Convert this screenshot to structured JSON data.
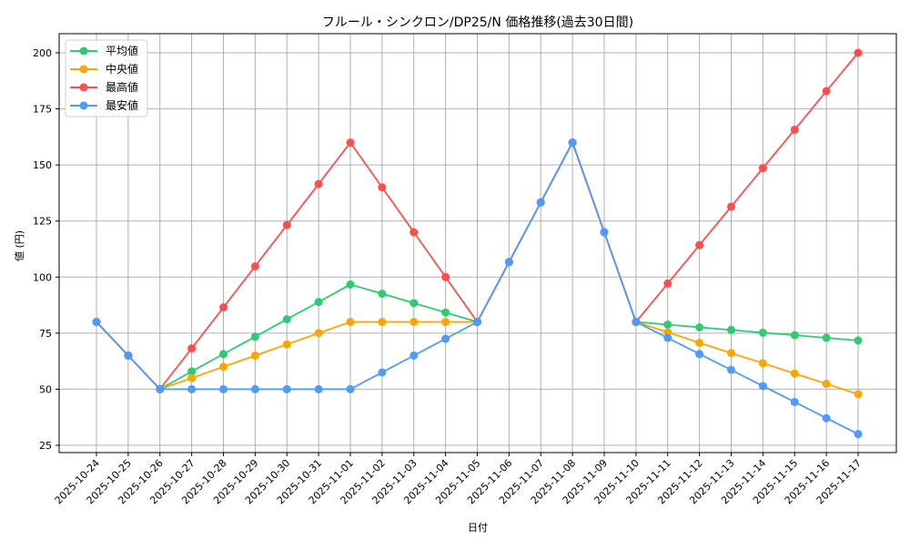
{
  "chart_data": {
    "type": "line",
    "title": "フルール・シンクロン/DP25/N 価格推移(過去30日間)",
    "xlabel": "日付",
    "ylabel": "値 (円)",
    "ylim": [
      22,
      208
    ],
    "yticks": [
      25,
      50,
      75,
      100,
      125,
      150,
      175,
      200
    ],
    "grid": true,
    "legend_position": "upper left",
    "categories": [
      "2025-10-24",
      "2025-10-25",
      "2025-10-26",
      "2025-10-27",
      "2025-10-28",
      "2025-10-29",
      "2025-10-30",
      "2025-10-31",
      "2025-11-01",
      "2025-11-02",
      "2025-11-03",
      "2025-11-04",
      "2025-11-05",
      "2025-11-06",
      "2025-11-07",
      "2025-11-08",
      "2025-11-09",
      "2025-11-10",
      "2025-11-11",
      "2025-11-12",
      "2025-11-13",
      "2025-11-14",
      "2025-11-15",
      "2025-11-16",
      "2025-11-17"
    ],
    "series": [
      {
        "name": "平均値",
        "color": "#2ecc71",
        "values": [
          80,
          65,
          50,
          57.9,
          65.7,
          73.4,
          81.2,
          88.9,
          96.7,
          92.6,
          88.4,
          84.2,
          80,
          106.7,
          133.3,
          160,
          120,
          80,
          78.8,
          77.6,
          76.4,
          75.2,
          74.1,
          72.9,
          71.7
        ]
      },
      {
        "name": "中央値",
        "color": "#ffa500",
        "values": [
          80,
          65,
          50,
          55,
          60,
          65,
          70,
          75,
          80,
          80,
          80,
          80,
          80,
          106.7,
          133.3,
          160,
          120,
          80,
          75.4,
          70.7,
          66.1,
          61.6,
          57.0,
          52.4,
          47.8
        ]
      },
      {
        "name": "最高値",
        "color": "#ff4d4d",
        "values": [
          80,
          65,
          50,
          68.2,
          86.5,
          104.8,
          123.2,
          141.5,
          160,
          140,
          120,
          100,
          80,
          106.7,
          133.3,
          160,
          120,
          80,
          97.1,
          114.3,
          131.4,
          148.6,
          165.7,
          182.9,
          200
        ]
      },
      {
        "name": "最安値",
        "color": "#4d9bff",
        "values": [
          80,
          65,
          50,
          50,
          50,
          50,
          50,
          50,
          50,
          57.5,
          65,
          72.5,
          80,
          106.7,
          133.3,
          160,
          120,
          80,
          72.9,
          65.7,
          58.6,
          51.4,
          44.3,
          37.1,
          30
        ]
      }
    ]
  }
}
